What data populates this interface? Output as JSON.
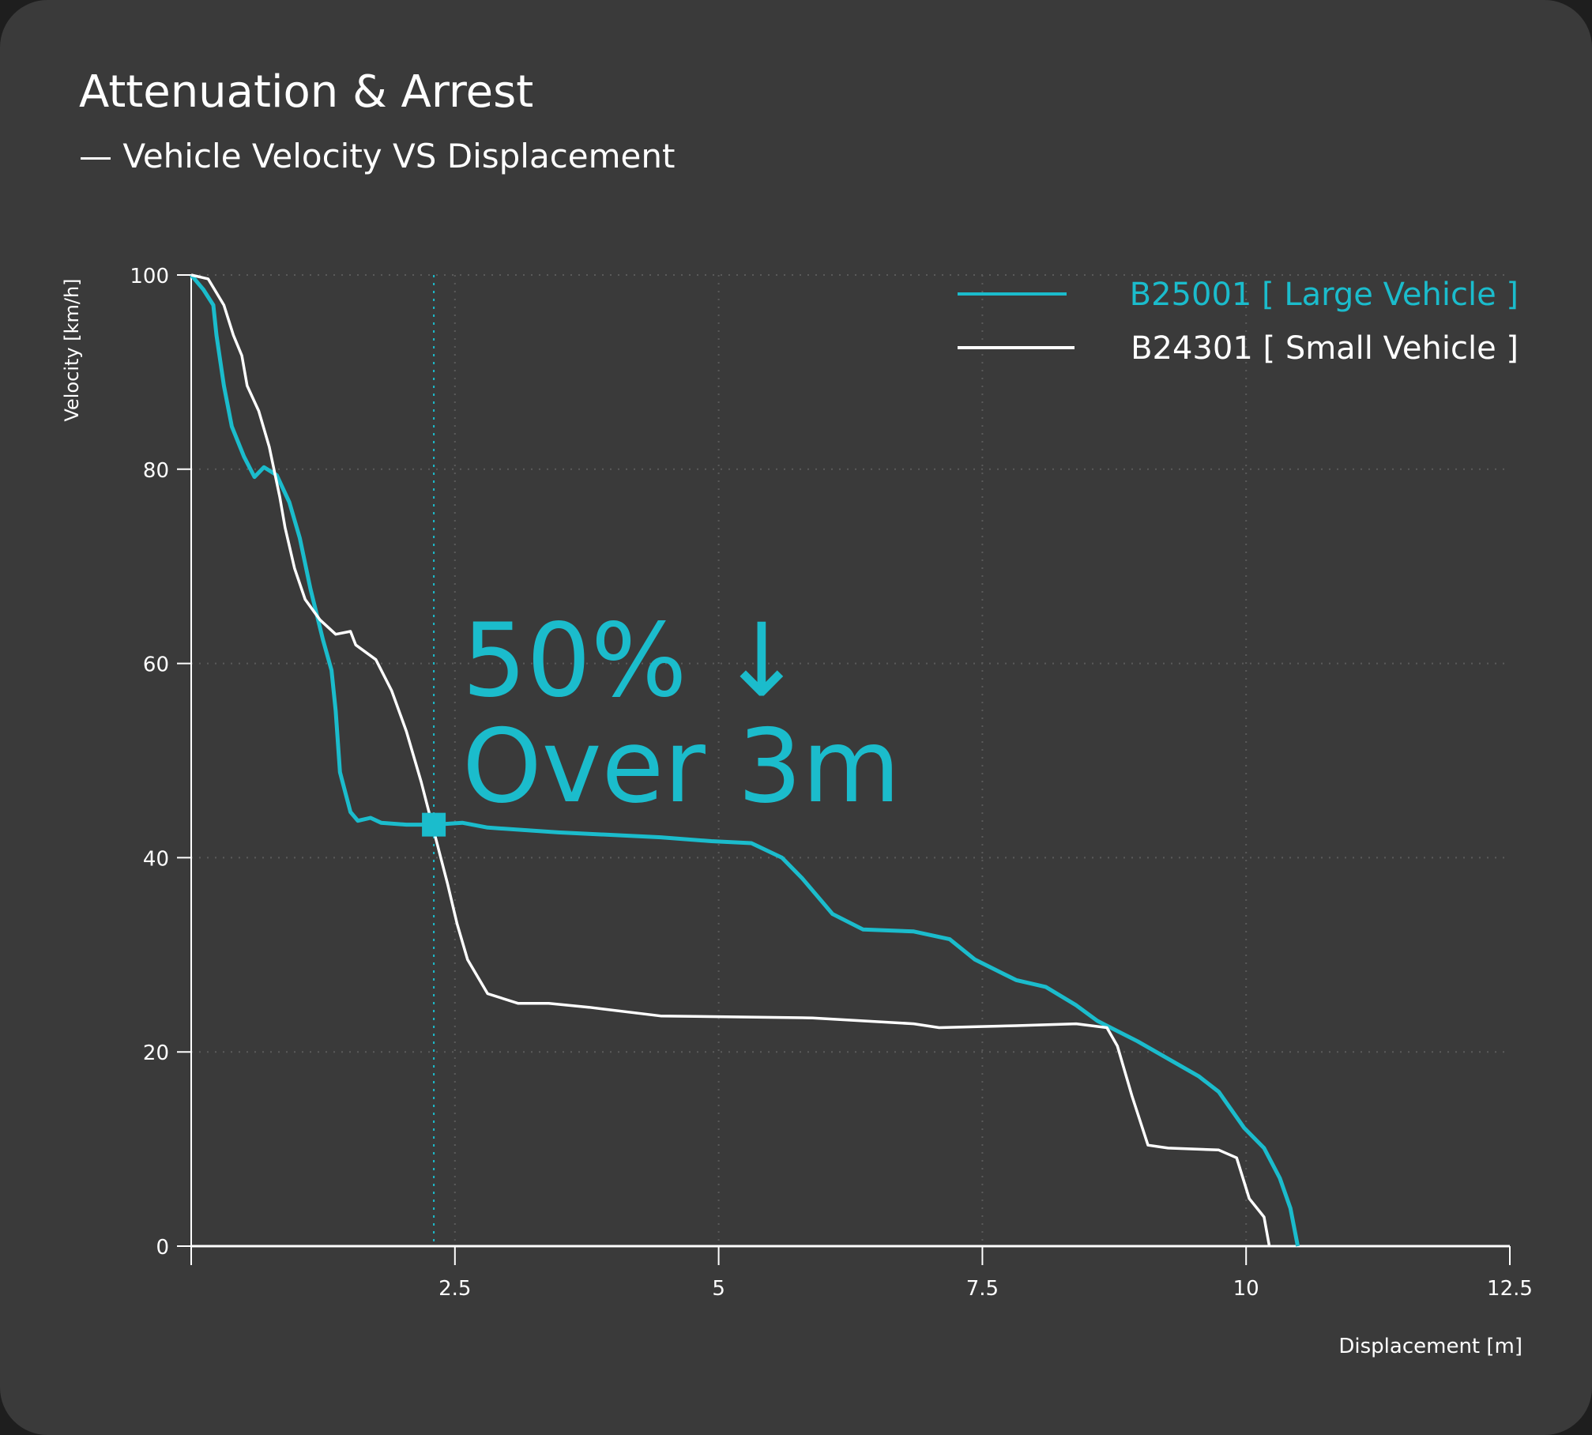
{
  "chart_data": {
    "type": "line",
    "title": "Attenuation & Arrest",
    "subtitle": "— Vehicle Velocity VS Displacement",
    "xlabel": "Displacement [m]",
    "ylabel": "Velocity [km/h]",
    "xlim": [
      0,
      12.5
    ],
    "ylim": [
      0,
      100
    ],
    "xticks": [
      "2.5",
      "5",
      "7.5",
      "10",
      "12.5"
    ],
    "xtick_values": [
      2.5,
      5,
      7.5,
      10,
      12.5
    ],
    "yticks": [
      "0",
      "20",
      "40",
      "60",
      "80",
      "100"
    ],
    "ytick_values": [
      0,
      20,
      40,
      60,
      80,
      100
    ],
    "grid": true,
    "legend_position": "top-right",
    "annotation": {
      "line1": "50% ↓",
      "line2": "Over 3m",
      "marker_x": 2.3,
      "marker_y": 43.4,
      "color": "#1bbccc"
    },
    "series": [
      {
        "name": "B25001 [ Large Vehicle ]",
        "color": "#1bbccc",
        "x": [
          0,
          0.115,
          0.21,
          0.24,
          0.31,
          0.385,
          0.5,
          0.6,
          0.69,
          0.81,
          0.93,
          1.03,
          1.13,
          1.25,
          1.33,
          1.37,
          1.41,
          1.51,
          1.58,
          1.7,
          1.8,
          2.04,
          2.3,
          2.57,
          2.81,
          3.48,
          4.45,
          4.93,
          5.31,
          5.6,
          5.79,
          6.08,
          6.37,
          6.85,
          7.19,
          7.43,
          7.82,
          8.1,
          8.39,
          8.59,
          8.97,
          9.55,
          9.74,
          9.98,
          10.17,
          10.32,
          10.42,
          10.49
        ],
        "y": [
          100,
          98.5,
          96.9,
          93.8,
          88.6,
          84.4,
          81.3,
          79.2,
          80.2,
          79.4,
          76.6,
          72.9,
          67.7,
          62.4,
          59.3,
          55.1,
          48.8,
          44.7,
          43.8,
          44.1,
          43.6,
          43.4,
          43.4,
          43.6,
          43.1,
          42.6,
          42.1,
          41.7,
          41.5,
          40,
          37.9,
          34.2,
          32.6,
          32.4,
          31.6,
          29.5,
          27.4,
          26.7,
          24.8,
          23.2,
          21.1,
          17.5,
          15.9,
          12.2,
          10.1,
          7,
          3.9,
          0
        ]
      },
      {
        "name": "B24301 [ Small Vehicle ]",
        "color": "#ffffff",
        "x": [
          0,
          0.16,
          0.31,
          0.4,
          0.48,
          0.53,
          0.64,
          0.74,
          0.84,
          0.89,
          0.98,
          1.08,
          1.22,
          1.37,
          1.51,
          1.56,
          1.75,
          1.9,
          2.04,
          2.18,
          2.33,
          2.43,
          2.52,
          2.62,
          2.81,
          3.1,
          3.39,
          3.77,
          4.45,
          5.89,
          6.85,
          7.09,
          7.82,
          8.39,
          8.68,
          8.78,
          8.92,
          9.07,
          9.26,
          9.74,
          9.91,
          10.03,
          10.17,
          10.22
        ],
        "y": [
          100,
          99.6,
          96.9,
          93.8,
          91.7,
          88.6,
          86,
          82.3,
          77.1,
          74,
          69.8,
          66.6,
          64.5,
          63,
          63.3,
          61.9,
          60.4,
          57.2,
          53,
          47.8,
          41.5,
          37.3,
          33.2,
          29.5,
          26,
          25,
          25,
          24.6,
          23.7,
          23.5,
          22.9,
          22.5,
          22.7,
          22.9,
          22.5,
          20.6,
          15.4,
          10.4,
          10.1,
          9.9,
          9.1,
          4.9,
          3,
          0
        ]
      }
    ]
  }
}
